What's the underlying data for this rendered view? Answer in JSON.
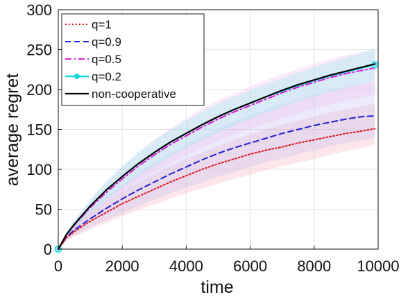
{
  "chart_data": {
    "type": "line",
    "title": "",
    "xlabel": "time",
    "ylabel": "average regret",
    "xlim": [
      0,
      10000
    ],
    "ylim": [
      0,
      300
    ],
    "xticks": [
      0,
      2000,
      4000,
      6000,
      8000,
      10000
    ],
    "yticks": [
      0,
      50,
      100,
      150,
      200,
      250,
      300
    ],
    "xtick_labels": [
      "0",
      "2000",
      "4000",
      "6000",
      "8000",
      "10000"
    ],
    "ytick_labels": [
      "0",
      "50",
      "100",
      "150",
      "200",
      "250",
      "300"
    ],
    "grid": true,
    "legend_position": "top-left",
    "x": [
      0,
      250,
      500,
      1000,
      1500,
      2000,
      2500,
      3000,
      3500,
      4000,
      4500,
      5000,
      5500,
      6000,
      6500,
      7000,
      7500,
      8000,
      8500,
      9000,
      9500,
      9900
    ],
    "series": [
      {
        "name": "q=1",
        "color": "#e0141e",
        "style": "dotted",
        "band_color": "#f6a6b2",
        "values": [
          0,
          14,
          22,
          35,
          46,
          57,
          66,
          75,
          84,
          92,
          100,
          107,
          113,
          119,
          124,
          128,
          133,
          137,
          141,
          145,
          148,
          151
        ],
        "band_lower": [
          0,
          10,
          16,
          25,
          33,
          41,
          49,
          56,
          63,
          70,
          76,
          82,
          88,
          93,
          99,
          104,
          108,
          113,
          118,
          123,
          127,
          131
        ],
        "band_upper": [
          0,
          19,
          29,
          45,
          59,
          72,
          84,
          94,
          104,
          113,
          121,
          129,
          137,
          144,
          150,
          156,
          161,
          166,
          171,
          175,
          179,
          182
        ]
      },
      {
        "name": "q=0.9",
        "color": "#1f1fd6",
        "style": "dashed",
        "band_color": "#b9b4ef",
        "values": [
          0,
          15,
          24,
          38,
          51,
          63,
          74,
          84,
          94,
          103,
          112,
          120,
          127,
          133,
          139,
          145,
          150,
          155,
          159,
          163,
          166,
          167
        ],
        "band_lower": [
          0,
          11,
          17,
          27,
          37,
          45,
          54,
          62,
          70,
          77,
          84,
          91,
          97,
          103,
          109,
          114,
          119,
          124,
          129,
          133,
          137,
          140
        ],
        "band_upper": [
          0,
          20,
          31,
          50,
          66,
          81,
          95,
          108,
          120,
          131,
          141,
          151,
          160,
          168,
          175,
          182,
          188,
          194,
          199,
          203,
          207,
          209
        ]
      },
      {
        "name": "q=0.5",
        "color": "#d61ed6",
        "style": "dashdot",
        "band_color": "#f0b4ee",
        "values": [
          0,
          18,
          30,
          52,
          71,
          88,
          104,
          118,
          131,
          142,
          153,
          163,
          172,
          180,
          188,
          196,
          203,
          209,
          215,
          220,
          224,
          227
        ],
        "band_lower": [
          0,
          14,
          24,
          42,
          58,
          72,
          85,
          97,
          108,
          118,
          127,
          136,
          144,
          151,
          158,
          164,
          170,
          176,
          181,
          186,
          190,
          193
        ],
        "band_upper": [
          0,
          22,
          36,
          61,
          83,
          103,
          121,
          137,
          151,
          164,
          176,
          186,
          195,
          204,
          212,
          219,
          226,
          232,
          238,
          243,
          247,
          250
        ]
      },
      {
        "name": "q=0.2",
        "color": "#19d7e3",
        "style": "solid-circle",
        "band_color": "#9eebf0",
        "values": [
          0,
          18,
          31,
          54,
          74,
          91,
          107,
          121,
          134,
          145,
          156,
          166,
          175,
          183,
          191,
          198,
          205,
          211,
          217,
          222,
          227,
          231
        ],
        "band_lower": [
          0,
          15,
          26,
          45,
          62,
          77,
          91,
          104,
          116,
          127,
          137,
          146,
          155,
          163,
          171,
          178,
          185,
          191,
          197,
          202,
          207,
          211
        ],
        "band_upper": [
          0,
          21,
          36,
          62,
          85,
          104,
          121,
          136,
          149,
          161,
          172,
          182,
          191,
          199,
          207,
          214,
          221,
          228,
          234,
          240,
          246,
          251
        ]
      },
      {
        "name": "non-cooperative",
        "color": "#000000",
        "style": "solid",
        "values": [
          0,
          18,
          31,
          54,
          74,
          91,
          107,
          121,
          134,
          145,
          156,
          166,
          175,
          183,
          191,
          199,
          206,
          212,
          218,
          223,
          228,
          232
        ]
      }
    ]
  }
}
